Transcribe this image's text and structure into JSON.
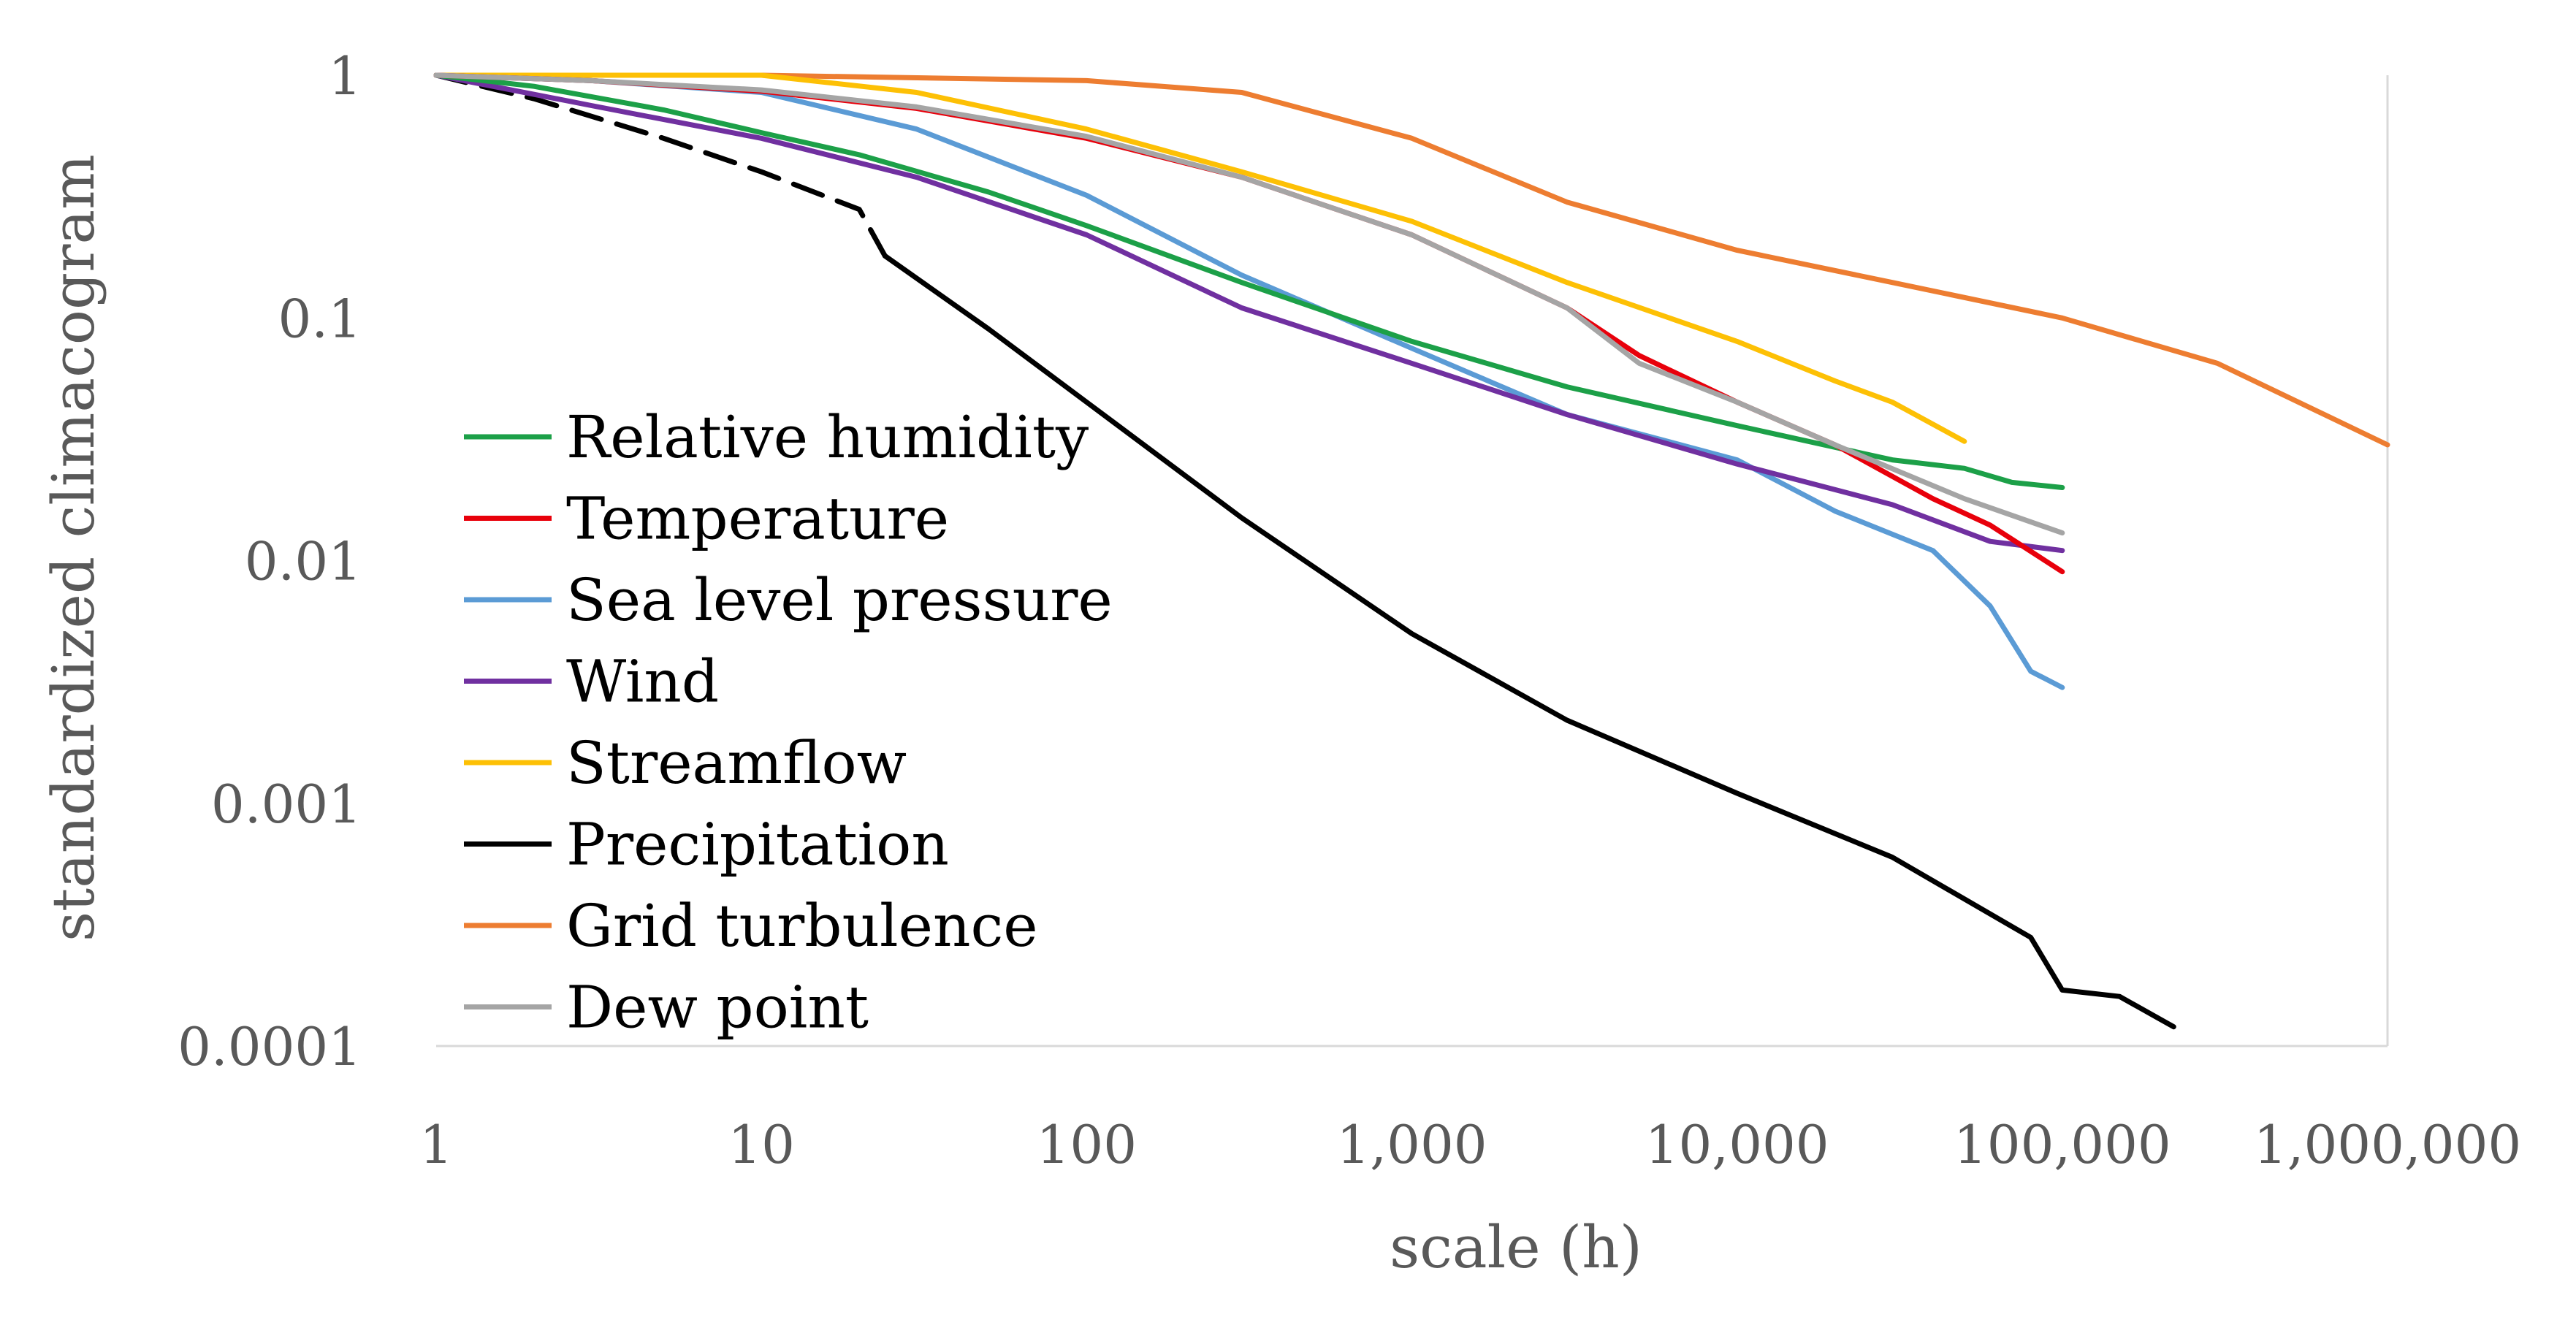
{
  "chart_data": {
    "type": "line",
    "title": "",
    "xlabel": "scale (h)",
    "ylabel": "standardized climacogram",
    "xscale": "log",
    "yscale": "log",
    "xlim": [
      1,
      1000000
    ],
    "ylim": [
      0.0001,
      1
    ],
    "xticks": [
      {
        "value": 1,
        "label": "1"
      },
      {
        "value": 10,
        "label": "10"
      },
      {
        "value": 100,
        "label": "100"
      },
      {
        "value": 1000,
        "label": "1,000"
      },
      {
        "value": 10000,
        "label": "10,000"
      },
      {
        "value": 100000,
        "label": "100,000"
      },
      {
        "value": 1000000,
        "label": "1,000,000"
      }
    ],
    "yticks": [
      {
        "value": 1,
        "label": "1"
      },
      {
        "value": 0.1,
        "label": "0.1"
      },
      {
        "value": 0.01,
        "label": "0.01"
      },
      {
        "value": 0.001,
        "label": "0.001"
      },
      {
        "value": 0.0001,
        "label": "0.0001"
      }
    ],
    "grid": false,
    "legend_position": "left, inside plot",
    "series": [
      {
        "name": "Relative humidity",
        "color": "#1ca048",
        "x": [
          1,
          2,
          5,
          10,
          20,
          50,
          100,
          300,
          1000,
          3000,
          10000,
          30000,
          50000,
          70000,
          100000
        ],
        "y": [
          1,
          0.9,
          0.72,
          0.58,
          0.47,
          0.33,
          0.24,
          0.14,
          0.08,
          0.052,
          0.036,
          0.026,
          0.024,
          0.021,
          0.02
        ]
      },
      {
        "name": "Temperature",
        "color": "#e8000b",
        "x": [
          1,
          3,
          10,
          30,
          100,
          300,
          1000,
          3000,
          5000,
          10000,
          20000,
          40000,
          60000,
          100000
        ],
        "y": [
          1,
          0.95,
          0.86,
          0.73,
          0.55,
          0.38,
          0.22,
          0.11,
          0.07,
          0.045,
          0.03,
          0.018,
          0.014,
          0.009
        ]
      },
      {
        "name": "Sea level pressure",
        "color": "#5b9bd5",
        "x": [
          1,
          3,
          10,
          30,
          100,
          300,
          1000,
          3000,
          10000,
          20000,
          40000,
          60000,
          80000,
          100000
        ],
        "y": [
          1,
          0.95,
          0.85,
          0.6,
          0.32,
          0.15,
          0.075,
          0.04,
          0.026,
          0.016,
          0.011,
          0.0065,
          0.0035,
          0.003
        ]
      },
      {
        "name": "Wind",
        "color": "#7030a0",
        "x": [
          1,
          3,
          10,
          30,
          100,
          300,
          1000,
          3000,
          10000,
          30000,
          60000,
          100000
        ],
        "y": [
          1,
          0.75,
          0.55,
          0.38,
          0.22,
          0.11,
          0.065,
          0.04,
          0.025,
          0.017,
          0.012,
          0.011
        ]
      },
      {
        "name": "Streamflow",
        "color": "#fdc005",
        "x": [
          1,
          10,
          30,
          100,
          300,
          1000,
          3000,
          10000,
          20000,
          30000,
          50000
        ],
        "y": [
          1,
          1,
          0.85,
          0.6,
          0.4,
          0.25,
          0.14,
          0.08,
          0.055,
          0.045,
          0.031
        ]
      },
      {
        "name": "Precipitation",
        "color": "#000000",
        "x": [
          1,
          2,
          5,
          10,
          20,
          24,
          50,
          100,
          300,
          1000,
          3000,
          10000,
          30000,
          80000,
          100000,
          150000,
          220000
        ],
        "y": [
          1,
          0.8,
          0.55,
          0.4,
          0.28,
          0.18,
          0.09,
          0.045,
          0.015,
          0.005,
          0.0022,
          0.0011,
          0.0006,
          0.00028,
          0.00017,
          0.00016,
          0.00012
        ]
      },
      {
        "name": "Grid turbulence",
        "color": "#ed7d31",
        "x": [
          1,
          10,
          100,
          300,
          1000,
          3000,
          10000,
          30000,
          100000,
          300000,
          1000000
        ],
        "y": [
          1,
          1,
          0.95,
          0.85,
          0.55,
          0.3,
          0.19,
          0.14,
          0.1,
          0.065,
          0.03
        ]
      },
      {
        "name": "Dew point",
        "color": "#a5a5a5",
        "x": [
          1,
          3,
          10,
          30,
          100,
          300,
          1000,
          3000,
          5000,
          10000,
          20000,
          50000,
          100000
        ],
        "y": [
          1,
          0.95,
          0.87,
          0.74,
          0.56,
          0.38,
          0.22,
          0.11,
          0.065,
          0.045,
          0.03,
          0.018,
          0.013
        ]
      }
    ],
    "precipitation_dashed_until_x": 24
  }
}
